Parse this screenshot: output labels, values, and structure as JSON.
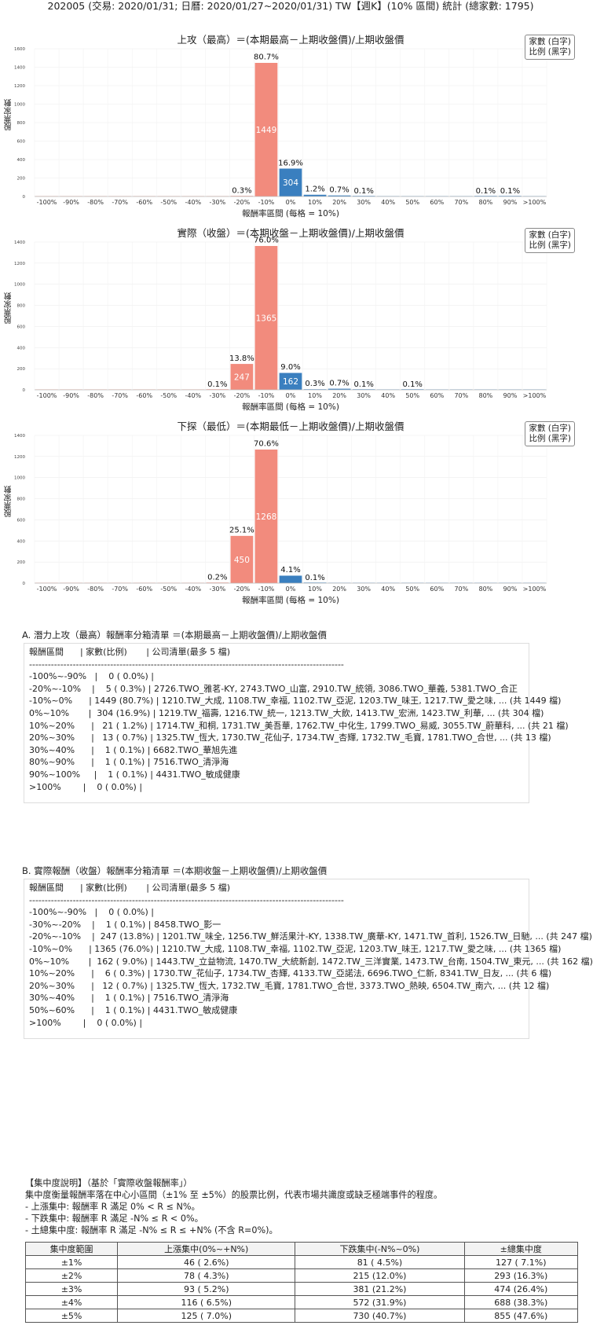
{
  "header": "202005 (交易: 2020/01/31; 日曆: 2020/01/27~2020/01/31) TW【週K】(10% 區間) 統計 (總家數: 1795)",
  "charts": [
    {
      "title": "上攻（最高）＝(本期最高－上期收盤價)/上期收盤價",
      "legend": [
        "家數 (白字)",
        "比例 (黑字)"
      ],
      "ylabel": "股票家數",
      "xlabel": "報酬率區間 (每格 = 10%)"
    },
    {
      "title": "實際（收盤）＝(本期收盤－上期收盤價)/上期收盤價",
      "legend": [
        "家數 (白字)",
        "比例 (黑字)"
      ],
      "ylabel": "股票家數",
      "xlabel": "報酬率區間 (每格 = 10%)"
    },
    {
      "title": "下探（最低）＝(本期最低－上期收盤價)/上期收盤價",
      "legend": [
        "家數 (白字)",
        "比例 (黑字)"
      ],
      "ylabel": "股票家數",
      "xlabel": "報酬率區間 (每格 = 10%)"
    }
  ],
  "chart_data": [
    {
      "type": "bar",
      "title": "上攻（最高）＝(本期最高－上期收盤價)/上期收盤價",
      "xlabel": "報酬率區間 (每格 = 10%)",
      "ylabel": "股票家數",
      "categories": [
        "-100%",
        "-90%",
        "-80%",
        "-70%",
        "-60%",
        "-50%",
        "-40%",
        "-30%",
        "-20%",
        "-10%",
        "0%",
        "10%",
        "20%",
        "30%",
        "40%",
        "50%",
        "60%",
        "70%",
        "80%",
        "90%",
        ">100%"
      ],
      "values": [
        0,
        0,
        0,
        0,
        0,
        0,
        0,
        0,
        5,
        1449,
        304,
        21,
        13,
        1,
        0,
        0,
        0,
        0,
        1,
        1,
        0
      ],
      "labels": [
        "",
        "",
        "",
        "",
        "",
        "",
        "",
        "",
        "0.3%",
        "80.7%",
        "16.9%",
        "1.2%",
        "0.7%",
        "0.1%",
        "",
        "",
        "",
        "",
        "0.1%",
        "0.1%",
        ""
      ],
      "ylim": [
        0,
        1600
      ],
      "yticks": [
        0,
        200,
        400,
        600,
        800,
        1000,
        1200,
        1400,
        1600
      ],
      "colors": {
        "negative": "#f28b7d",
        "positive": "#3a7fbf"
      }
    },
    {
      "type": "bar",
      "title": "實際（收盤）＝(本期收盤－上期收盤價)/上期收盤價",
      "xlabel": "報酬率區間 (每格 = 10%)",
      "ylabel": "股票家數",
      "categories": [
        "-100%",
        "-90%",
        "-80%",
        "-70%",
        "-60%",
        "-50%",
        "-40%",
        "-30%",
        "-20%",
        "-10%",
        "0%",
        "10%",
        "20%",
        "30%",
        "40%",
        "50%",
        "60%",
        "70%",
        "80%",
        "90%",
        ">100%"
      ],
      "values": [
        0,
        0,
        0,
        0,
        0,
        0,
        0,
        1,
        247,
        1365,
        162,
        6,
        12,
        1,
        0,
        1,
        0,
        0,
        0,
        0,
        0
      ],
      "labels": [
        "",
        "",
        "",
        "",
        "",
        "",
        "",
        "0.1%",
        "13.8%",
        "76.0%",
        "9.0%",
        "0.3%",
        "0.7%",
        "0.1%",
        "",
        "0.1%",
        "",
        "",
        "",
        "",
        ""
      ],
      "ylim": [
        0,
        1400
      ],
      "yticks": [
        0,
        200,
        400,
        600,
        800,
        1000,
        1200,
        1400
      ],
      "colors": {
        "negative": "#f28b7d",
        "positive": "#3a7fbf"
      }
    },
    {
      "type": "bar",
      "title": "下探（最低）＝(本期最低－上期收盤價)/上期收盤價",
      "xlabel": "報酬率區間 (每格 = 10%)",
      "ylabel": "股票家數",
      "categories": [
        "-100%",
        "-90%",
        "-80%",
        "-70%",
        "-60%",
        "-50%",
        "-40%",
        "-30%",
        "-20%",
        "-10%",
        "0%",
        "10%",
        "20%",
        "30%",
        "40%",
        "50%",
        "60%",
        "70%",
        "80%",
        "90%",
        ">100%"
      ],
      "values": [
        0,
        0,
        0,
        0,
        0,
        0,
        0,
        3,
        450,
        1268,
        73,
        1,
        0,
        0,
        0,
        0,
        0,
        0,
        0,
        0,
        0
      ],
      "labels": [
        "",
        "",
        "",
        "",
        "",
        "",
        "",
        "0.2%",
        "25.1%",
        "70.6%",
        "4.1%",
        "0.1%",
        "",
        "",
        "",
        "",
        "",
        "",
        "",
        "",
        ""
      ],
      "ylim": [
        0,
        1400
      ],
      "yticks": [
        0,
        200,
        400,
        600,
        800,
        1000,
        1200,
        1400
      ],
      "colors": {
        "negative": "#f28b7d",
        "positive": "#3a7fbf"
      }
    }
  ],
  "listA": {
    "title": "A. 潛力上攻（最高）報酬率分箱清單 ＝(本期最高－上期收盤價)/上期收盤價",
    "rows": [
      "報酬區間      | 家數(比例)       | 公司清單(最多 5 檔)",
      "-----------------------------------------------------------------------------------------------------",
      "-100%~-90%   |    0 ( 0.0%) |",
      "-20%~-10%    |    5 ( 0.3%) | 2726.TWO_雅茗-KY, 2743.TWO_山富, 2910.TW_統領, 3086.TWO_華義, 5381.TWO_合正",
      "-10%~0%      | 1449 (80.7%) | 1210.TW_大成, 1108.TW_幸福, 1102.TW_亞泥, 1203.TW_味王, 1217.TW_愛之味, ... (共 1449 檔)",
      "0%~10%       |  304 (16.9%) | 1219.TW_福壽, 1216.TW_統一, 1213.TW_大飲, 1413.TW_宏洲, 1423.TW_利華, ... (共 304 檔)",
      "10%~20%      |   21 ( 1.2%) | 1714.TW_和桐, 1731.TW_美吾華, 1762.TW_中化生, 1799.TWO_易威, 3055.TW_蔚華科, ... (共 21 檔)",
      "20%~30%      |   13 ( 0.7%) | 1325.TW_恆大, 1730.TW_花仙子, 1734.TW_杏輝, 1732.TW_毛寶, 1781.TWO_合世, ... (共 13 檔)",
      "30%~40%      |    1 ( 0.1%) | 6682.TWO_華旭先進",
      "80%~90%      |    1 ( 0.1%) | 7516.TWO_清淨海",
      "90%~100%     |    1 ( 0.1%) | 4431.TWO_敏成健康",
      ">100%        |    0 ( 0.0%) |"
    ]
  },
  "listB": {
    "title": "B. 實際報酬（收盤）報酬率分箱清單 ＝(本期收盤－上期收盤價)/上期收盤價",
    "rows": [
      "報酬區間      | 家數(比例)       | 公司清單(最多 5 檔)",
      "-----------------------------------------------------------------------------------------------------",
      "-100%~-90%   |    0 ( 0.0%) |",
      "-30%~-20%    |    1 ( 0.1%) | 8458.TWO_影一",
      "-20%~-10%    |  247 (13.8%) | 1201.TW_味全, 1256.TW_鮮活果汁-KY, 1338.TW_廣華-KY, 1471.TW_首利, 1526.TW_日馳, ... (共 247 檔)",
      "-10%~0%      | 1365 (76.0%) | 1210.TW_大成, 1108.TW_幸福, 1102.TW_亞泥, 1203.TW_味王, 1217.TW_愛之味, ... (共 1365 檔)",
      "0%~10%       |  162 ( 9.0%) | 1443.TW_立益物流, 1470.TW_大統新創, 1472.TW_三洋實業, 1473.TW_台南, 1504.TW_東元, ... (共 162 檔)",
      "10%~20%      |    6 ( 0.3%) | 1730.TW_花仙子, 1734.TW_杏輝, 4133.TW_亞諾法, 6696.TWO_仁新, 8341.TW_日友, ... (共 6 檔)",
      "20%~30%      |   12 ( 0.7%) | 1325.TW_恆大, 1732.TW_毛寶, 1781.TWO_合世, 3373.TWO_熱映, 6504.TW_南六, ... (共 12 檔)",
      "30%~40%      |    1 ( 0.1%) | 7516.TWO_清淨海",
      "50%~60%      |    1 ( 0.1%) | 4431.TWO_敏成健康",
      ">100%        |    0 ( 0.0%) |"
    ]
  },
  "note": {
    "lines": [
      "【集中度說明】（基於「實際收盤報酬率」）",
      "集中度衡量報酬率落在中心小區間（±1% 至 ±5%）的股票比例，代表市場共識度或缺乏極端事件的程度。",
      " - 上漲集中: 報酬率 R 滿足 0% < R ≤ N%。",
      " - 下跌集中: 報酬率 R 滿足 -N% ≤ R < 0%。",
      " - 土總集中度: 報酬率 R 滿足 -N% ≤ R ≤ +N% (不含 R=0%)。"
    ]
  },
  "concentration": {
    "headers": [
      "集中度範圍",
      "上漲集中(0%~+N%)",
      "下跌集中(-N%~0%)",
      "±總集中度"
    ],
    "rows": [
      [
        "±1%",
        "46 ( 2.6%)",
        "81 ( 4.5%)",
        "127 ( 7.1%)"
      ],
      [
        "±2%",
        "78 ( 4.3%)",
        "215 (12.0%)",
        "293 (16.3%)"
      ],
      [
        "±3%",
        "93 ( 5.2%)",
        "381 (21.2%)",
        "474 (26.4%)"
      ],
      [
        "±4%",
        "116 ( 6.5%)",
        "572 (31.9%)",
        "688 (38.3%)"
      ],
      [
        "±5%",
        "125 ( 7.0%)",
        "730 (40.7%)",
        "855 (47.6%)"
      ]
    ]
  }
}
